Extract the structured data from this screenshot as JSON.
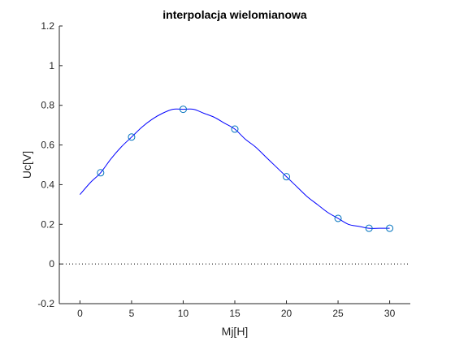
{
  "chart_data": {
    "type": "line",
    "title": "interpolacja wielomianowa",
    "xlabel": "Mj[H]",
    "ylabel": "Uc[V]",
    "xlim": [
      -2,
      32
    ],
    "ylim": [
      -0.2,
      1.2
    ],
    "xticks": [
      0,
      5,
      10,
      15,
      20,
      25,
      30
    ],
    "yticks": [
      -0.2,
      0,
      0.2,
      0.4,
      0.6,
      0.8,
      1,
      1.2
    ],
    "xtick_labels": [
      "0",
      "5",
      "10",
      "15",
      "20",
      "25",
      "30"
    ],
    "ytick_labels": [
      "-0.2",
      "0",
      "0.2",
      "0.4",
      "0.6",
      "0.8",
      "1",
      "1.2"
    ],
    "grid": false,
    "zero_line": {
      "y": 0,
      "style": "dotted",
      "x_range": [
        -2,
        32
      ]
    },
    "series": [
      {
        "kind": "markers",
        "marker": "circle",
        "color": "#0072BD",
        "x": [
          2,
          5,
          10,
          15,
          20,
          25,
          28,
          30
        ],
        "y": [
          0.46,
          0.64,
          0.78,
          0.68,
          0.44,
          0.23,
          0.18,
          0.18
        ]
      },
      {
        "kind": "curve",
        "color": "#0000FF",
        "x": [
          0,
          1,
          2,
          3,
          4,
          5,
          6,
          7,
          8,
          9,
          10,
          11,
          12,
          13,
          14,
          15,
          16,
          17,
          18,
          19,
          20,
          21,
          22,
          23,
          24,
          25,
          26,
          27,
          28,
          29,
          30
        ],
        "y": [
          0.35,
          0.41,
          0.46,
          0.53,
          0.59,
          0.64,
          0.69,
          0.73,
          0.76,
          0.78,
          0.78,
          0.78,
          0.76,
          0.74,
          0.71,
          0.68,
          0.63,
          0.59,
          0.54,
          0.49,
          0.44,
          0.39,
          0.34,
          0.3,
          0.26,
          0.23,
          0.2,
          0.19,
          0.18,
          0.18,
          0.18
        ]
      }
    ]
  }
}
